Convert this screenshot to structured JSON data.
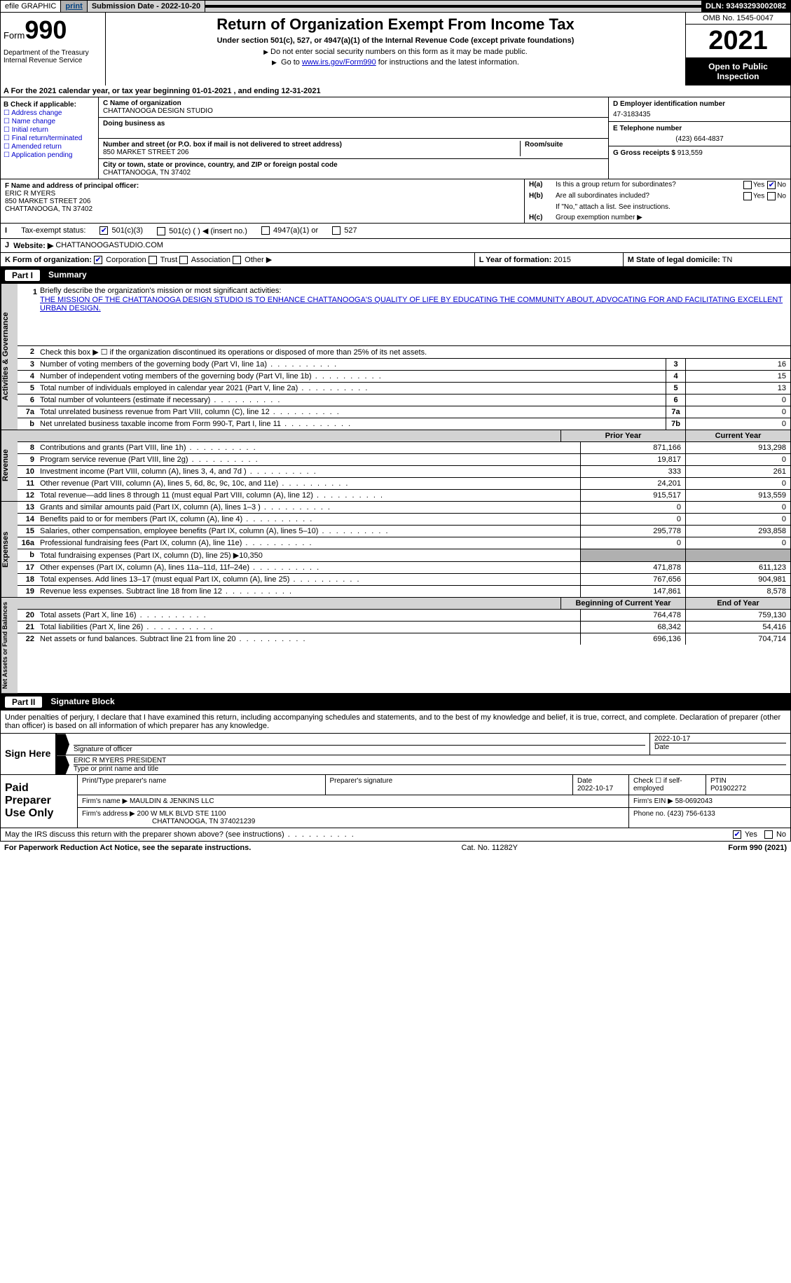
{
  "topbar": {
    "efile": "efile GRAPHIC",
    "print": "print",
    "submission": "Submission Date - 2022-10-20",
    "dln": "DLN: 93493293002082"
  },
  "header": {
    "form_label": "Form",
    "form_number": "990",
    "dept": "Department of the Treasury\nInternal Revenue Service",
    "title": "Return of Organization Exempt From Income Tax",
    "subtitle": "Under section 501(c), 527, or 4947(a)(1) of the Internal Revenue Code (except private foundations)",
    "instr1": "Do not enter social security numbers on this form as it may be made public.",
    "instr2_pre": "Go to ",
    "instr2_link": "www.irs.gov/Form990",
    "instr2_post": " for instructions and the latest information.",
    "omb": "OMB No. 1545-0047",
    "year": "2021",
    "open_public": "Open to Public Inspection"
  },
  "section_a": "A For the 2021 calendar year, or tax year beginning 01-01-2021    , and ending 12-31-2021",
  "col_b": {
    "header": "B Check if applicable:",
    "items": [
      "Address change",
      "Name change",
      "Initial return",
      "Final return/terminated",
      "Amended return",
      "Application pending"
    ]
  },
  "col_c": {
    "name_label": "C Name of organization",
    "name": "CHATTANOOGA DESIGN STUDIO",
    "dba_label": "Doing business as",
    "addr_label": "Number and street (or P.O. box if mail is not delivered to street address)",
    "addr": "850 MARKET STREET 206",
    "room_label": "Room/suite",
    "city_label": "City or town, state or province, country, and ZIP or foreign postal code",
    "city": "CHATTANOOGA, TN  37402"
  },
  "col_d": {
    "label": "D Employer identification number",
    "val": "47-3183435"
  },
  "col_e": {
    "label": "E Telephone number",
    "val": "(423) 664-4837"
  },
  "col_g": {
    "label": "G Gross receipts $",
    "val": "913,559"
  },
  "col_f": {
    "label": "F Name and address of principal officer:",
    "name": "ERIC R MYERS",
    "addr1": "850 MARKET STREET 206",
    "addr2": "CHATTANOOGA, TN  37402"
  },
  "col_h": {
    "a_label": "H(a)",
    "a_text": "Is this a group return for subordinates?",
    "b_label": "H(b)",
    "b_text": "Are all subordinates included?",
    "note": "If \"No,\" attach a list. See instructions.",
    "c_label": "H(c)",
    "c_text": "Group exemption number ▶",
    "yes": "Yes",
    "no": "No"
  },
  "row_i": {
    "label": "I",
    "text": "Tax-exempt status:",
    "opts": [
      "501(c)(3)",
      "501(c) (  ) ◀ (insert no.)",
      "4947(a)(1) or",
      "527"
    ]
  },
  "row_j": {
    "label": "J",
    "text": "Website: ▶",
    "val": "CHATTANOOGASTUDIO.COM"
  },
  "row_k": {
    "text": "K Form of organization:",
    "opts": [
      "Corporation",
      "Trust",
      "Association",
      "Other ▶"
    ]
  },
  "row_l": {
    "text": "L Year of formation:",
    "val": "2015"
  },
  "row_m": {
    "text": "M State of legal domicile:",
    "val": "TN"
  },
  "part1": {
    "num": "Part I",
    "title": "Summary"
  },
  "mission": {
    "num": "1",
    "label": "Briefly describe the organization's mission or most significant activities:",
    "text": "THE MISSION OF THE CHATTANOOGA DESIGN STUDIO IS TO ENHANCE CHATTANOOGA'S QUALITY OF LIFE BY EDUCATING THE COMMUNITY ABOUT, ADVOCATING FOR AND FACILITATING EXCELLENT URBAN DESIGN."
  },
  "line2": {
    "num": "2",
    "text": "Check this box ▶ ☐ if the organization discontinued its operations or disposed of more than 25% of its net assets."
  },
  "gov_lines": [
    {
      "num": "3",
      "text": "Number of voting members of the governing body (Part VI, line 1a)",
      "box": "3",
      "val": "16"
    },
    {
      "num": "4",
      "text": "Number of independent voting members of the governing body (Part VI, line 1b)",
      "box": "4",
      "val": "15"
    },
    {
      "num": "5",
      "text": "Total number of individuals employed in calendar year 2021 (Part V, line 2a)",
      "box": "5",
      "val": "13"
    },
    {
      "num": "6",
      "text": "Total number of volunteers (estimate if necessary)",
      "box": "6",
      "val": "0"
    },
    {
      "num": "7a",
      "text": "Total unrelated business revenue from Part VIII, column (C), line 12",
      "box": "7a",
      "val": "0"
    },
    {
      "num": "b",
      "text": "Net unrelated business taxable income from Form 990-T, Part I, line 11",
      "box": "7b",
      "val": "0"
    }
  ],
  "col_headers": {
    "prior": "Prior Year",
    "current": "Current Year"
  },
  "revenue_lines": [
    {
      "num": "8",
      "text": "Contributions and grants (Part VIII, line 1h)",
      "py": "871,166",
      "cy": "913,298"
    },
    {
      "num": "9",
      "text": "Program service revenue (Part VIII, line 2g)",
      "py": "19,817",
      "cy": "0"
    },
    {
      "num": "10",
      "text": "Investment income (Part VIII, column (A), lines 3, 4, and 7d )",
      "py": "333",
      "cy": "261"
    },
    {
      "num": "11",
      "text": "Other revenue (Part VIII, column (A), lines 5, 6d, 8c, 9c, 10c, and 11e)",
      "py": "24,201",
      "cy": "0"
    },
    {
      "num": "12",
      "text": "Total revenue—add lines 8 through 11 (must equal Part VIII, column (A), line 12)",
      "py": "915,517",
      "cy": "913,559"
    }
  ],
  "expense_lines": [
    {
      "num": "13",
      "text": "Grants and similar amounts paid (Part IX, column (A), lines 1–3 )",
      "py": "0",
      "cy": "0"
    },
    {
      "num": "14",
      "text": "Benefits paid to or for members (Part IX, column (A), line 4)",
      "py": "0",
      "cy": "0"
    },
    {
      "num": "15",
      "text": "Salaries, other compensation, employee benefits (Part IX, column (A), lines 5–10)",
      "py": "295,778",
      "cy": "293,858"
    },
    {
      "num": "16a",
      "text": "Professional fundraising fees (Part IX, column (A), line 11e)",
      "py": "0",
      "cy": "0"
    },
    {
      "num": "b",
      "text": "Total fundraising expenses (Part IX, column (D), line 25) ▶10,350",
      "py": "",
      "cy": "",
      "grey": true
    },
    {
      "num": "17",
      "text": "Other expenses (Part IX, column (A), lines 11a–11d, 11f–24e)",
      "py": "471,878",
      "cy": "611,123"
    },
    {
      "num": "18",
      "text": "Total expenses. Add lines 13–17 (must equal Part IX, column (A), line 25)",
      "py": "767,656",
      "cy": "904,981"
    },
    {
      "num": "19",
      "text": "Revenue less expenses. Subtract line 18 from line 12",
      "py": "147,861",
      "cy": "8,578"
    }
  ],
  "balance_headers": {
    "begin": "Beginning of Current Year",
    "end": "End of Year"
  },
  "balance_lines": [
    {
      "num": "20",
      "text": "Total assets (Part X, line 16)",
      "py": "764,478",
      "cy": "759,130"
    },
    {
      "num": "21",
      "text": "Total liabilities (Part X, line 26)",
      "py": "68,342",
      "cy": "54,416"
    },
    {
      "num": "22",
      "text": "Net assets or fund balances. Subtract line 21 from line 20",
      "py": "696,136",
      "cy": "704,714"
    }
  ],
  "sidelabels": {
    "gov": "Activities & Governance",
    "rev": "Revenue",
    "exp": "Expenses",
    "net": "Net Assets or Fund Balances"
  },
  "part2": {
    "num": "Part II",
    "title": "Signature Block"
  },
  "sig_declaration": "Under penalties of perjury, I declare that I have examined this return, including accompanying schedules and statements, and to the best of my knowledge and belief, it is true, correct, and complete. Declaration of preparer (other than officer) is based on all information of which preparer has any knowledge.",
  "sign": {
    "here": "Sign Here",
    "sig_label": "Signature of officer",
    "date_val": "2022-10-17",
    "date_label": "Date",
    "name": "ERIC R MYERS  PRESIDENT",
    "name_label": "Type or print name and title"
  },
  "paid": {
    "title": "Paid Preparer Use Only",
    "print_label": "Print/Type preparer's name",
    "sig_label": "Preparer's signature",
    "date_label": "Date",
    "date_val": "2022-10-17",
    "self_emp": "Check ☐ if self-employed",
    "ptin_label": "PTIN",
    "ptin": "P01902272",
    "firm_name_label": "Firm's name    ▶",
    "firm_name": "MAULDIN & JENKINS LLC",
    "firm_ein_label": "Firm's EIN ▶",
    "firm_ein": "58-0692043",
    "firm_addr_label": "Firm's address ▶",
    "firm_addr1": "200 W MLK BLVD STE 1100",
    "firm_addr2": "CHATTANOOGA, TN  374021239",
    "phone_label": "Phone no.",
    "phone": "(423) 756-6133"
  },
  "may_irs": "May the IRS discuss this return with the preparer shown above? (see instructions)",
  "footer": {
    "left": "For Paperwork Reduction Act Notice, see the separate instructions.",
    "center": "Cat. No. 11282Y",
    "right": "Form 990 (2021)"
  }
}
